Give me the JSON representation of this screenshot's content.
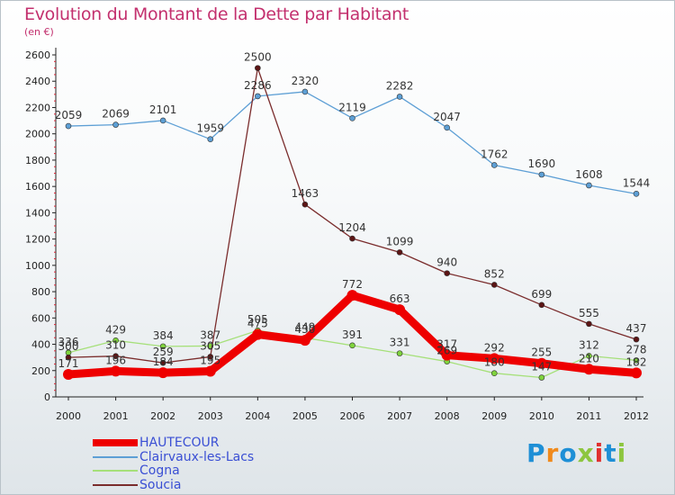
{
  "title": "Evolution du Montant de la Dette par Habitant",
  "subtitle": "(en €)",
  "logo": {
    "text": "Proxiti",
    "colors": [
      "#1e8fd6",
      "#f08a1c",
      "#1e8fd6",
      "#8dc63f",
      "#e0302f",
      "#1e8fd6",
      "#8dc63f"
    ]
  },
  "chart_data": {
    "type": "line",
    "title": "Evolution du Montant de la Dette par Habitant",
    "subtitle": "(en €)",
    "x": [
      "2000",
      "2001",
      "2002",
      "2003",
      "2004",
      "2005",
      "2006",
      "2007",
      "2008",
      "2009",
      "2010",
      "2011",
      "2012"
    ],
    "ylim": [
      0,
      2600
    ],
    "yticks": [
      0,
      200,
      400,
      600,
      800,
      1000,
      1200,
      1400,
      1600,
      1800,
      2000,
      2200,
      2400,
      2600
    ],
    "grid": false,
    "legend_position": "bottom-left",
    "series": [
      {
        "name": "HAUTECOUR",
        "color": "#ee0000",
        "point_color": "#ee0000",
        "emphasis": true,
        "values": [
          171,
          196,
          184,
          195,
          475,
          430,
          772,
          663,
          317,
          292,
          255,
          210,
          182
        ]
      },
      {
        "name": "Clairvaux-les-Lacs",
        "color": "#5d9fd5",
        "point_color": "#5d9fd5",
        "emphasis": false,
        "values": [
          2059,
          2069,
          2101,
          1959,
          2286,
          2320,
          2119,
          2282,
          2047,
          1762,
          1690,
          1608,
          1544
        ]
      },
      {
        "name": "Cogna",
        "color": "#a6e07a",
        "point_color": "#7fd33d",
        "emphasis": false,
        "values": [
          336,
          429,
          384,
          387,
          505,
          449,
          391,
          331,
          269,
          180,
          147,
          312,
          278
        ]
      },
      {
        "name": "Soucia",
        "color": "#7a2c2c",
        "point_color": "#5c1515",
        "emphasis": false,
        "values": [
          300,
          310,
          259,
          305,
          2500,
          1463,
          1204,
          1099,
          940,
          852,
          699,
          555,
          437
        ]
      }
    ]
  }
}
